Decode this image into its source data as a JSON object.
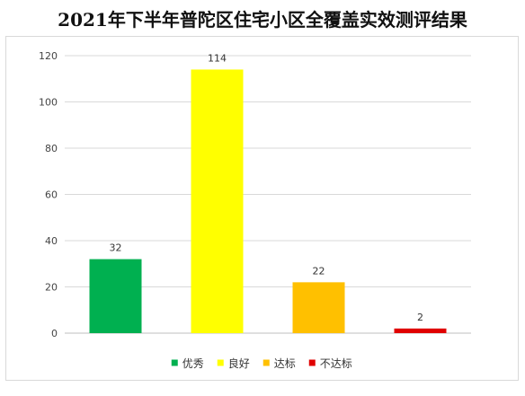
{
  "chart_data": {
    "type": "bar",
    "title": "2021年下半年普陀区住宅小区全覆盖实效测评结果",
    "categories": [
      "优秀",
      "良好",
      "达标",
      "不达标"
    ],
    "values": [
      32,
      114,
      22,
      2
    ],
    "colors": [
      "#00b050",
      "#ffff00",
      "#ffc000",
      "#e00000"
    ],
    "ylim": [
      0,
      120
    ],
    "yticks": [
      "0",
      "20",
      "40",
      "60",
      "80",
      "100",
      "120"
    ],
    "grid": true,
    "legend_position": "bottom",
    "xlabel": "",
    "ylabel": ""
  }
}
